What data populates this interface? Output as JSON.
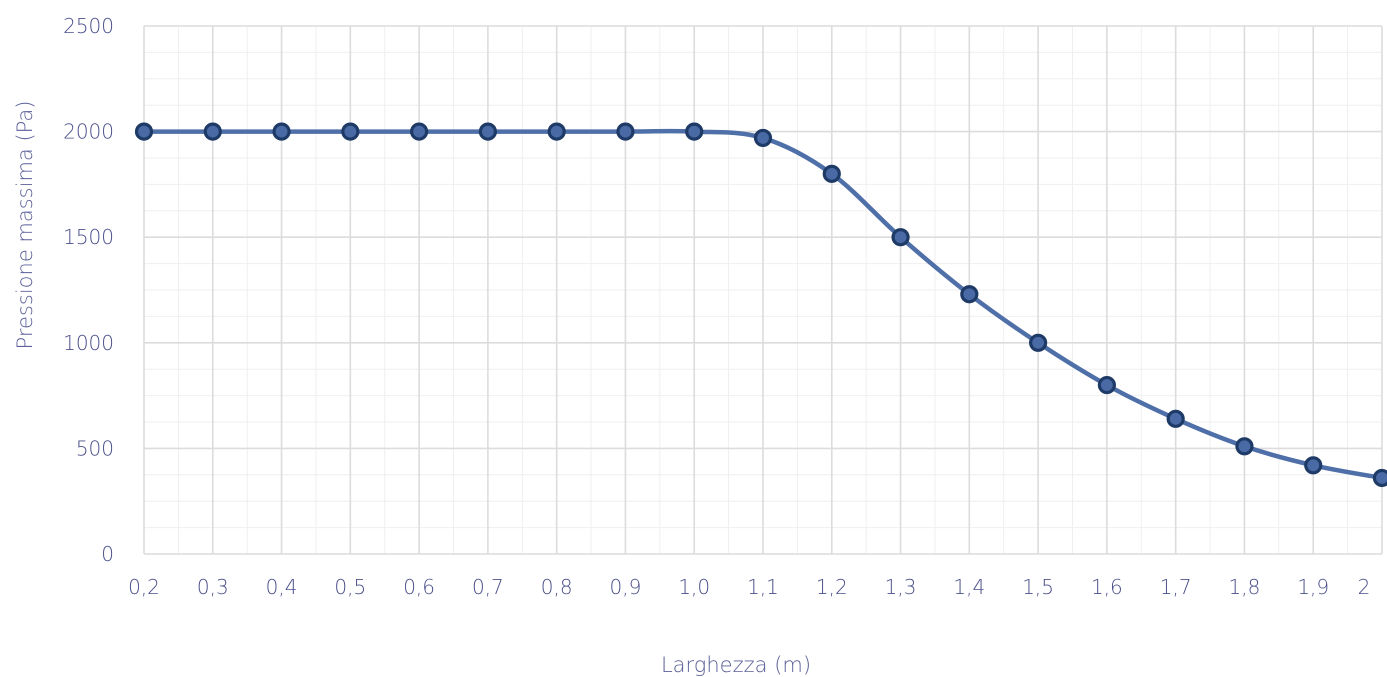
{
  "chart_data": {
    "type": "line",
    "xlabel": "Larghezza (m)",
    "ylabel": "Pressione massima (Pa)",
    "x_tick_labels": [
      "0,2",
      "0,3",
      "0,4",
      "0,5",
      "0,6",
      "0,7",
      "0,8",
      "0,9",
      "1,0",
      "1,1",
      "1,2",
      "1,3",
      "1,4",
      "1,5",
      "1,6",
      "1,7",
      "1,8",
      "1,9",
      "2"
    ],
    "y_tick_labels": [
      "0",
      "500",
      "1000",
      "1500",
      "2000",
      "2500"
    ],
    "x": [
      0.2,
      0.3,
      0.4,
      0.5,
      0.6,
      0.7,
      0.8,
      0.9,
      1.0,
      1.1,
      1.2,
      1.3,
      1.4,
      1.5,
      1.6,
      1.7,
      1.8,
      1.9,
      2.0
    ],
    "series": [
      {
        "values": [
          2000,
          2000,
          2000,
          2000,
          2000,
          2000,
          2000,
          2000,
          2000,
          1970,
          1800,
          1500,
          1230,
          1000,
          800,
          640,
          510,
          420,
          360
        ],
        "color": "#4e6fa8"
      }
    ],
    "xlim": [
      0.2,
      2.0
    ],
    "ylim": [
      0,
      2500
    ],
    "grid": true
  }
}
